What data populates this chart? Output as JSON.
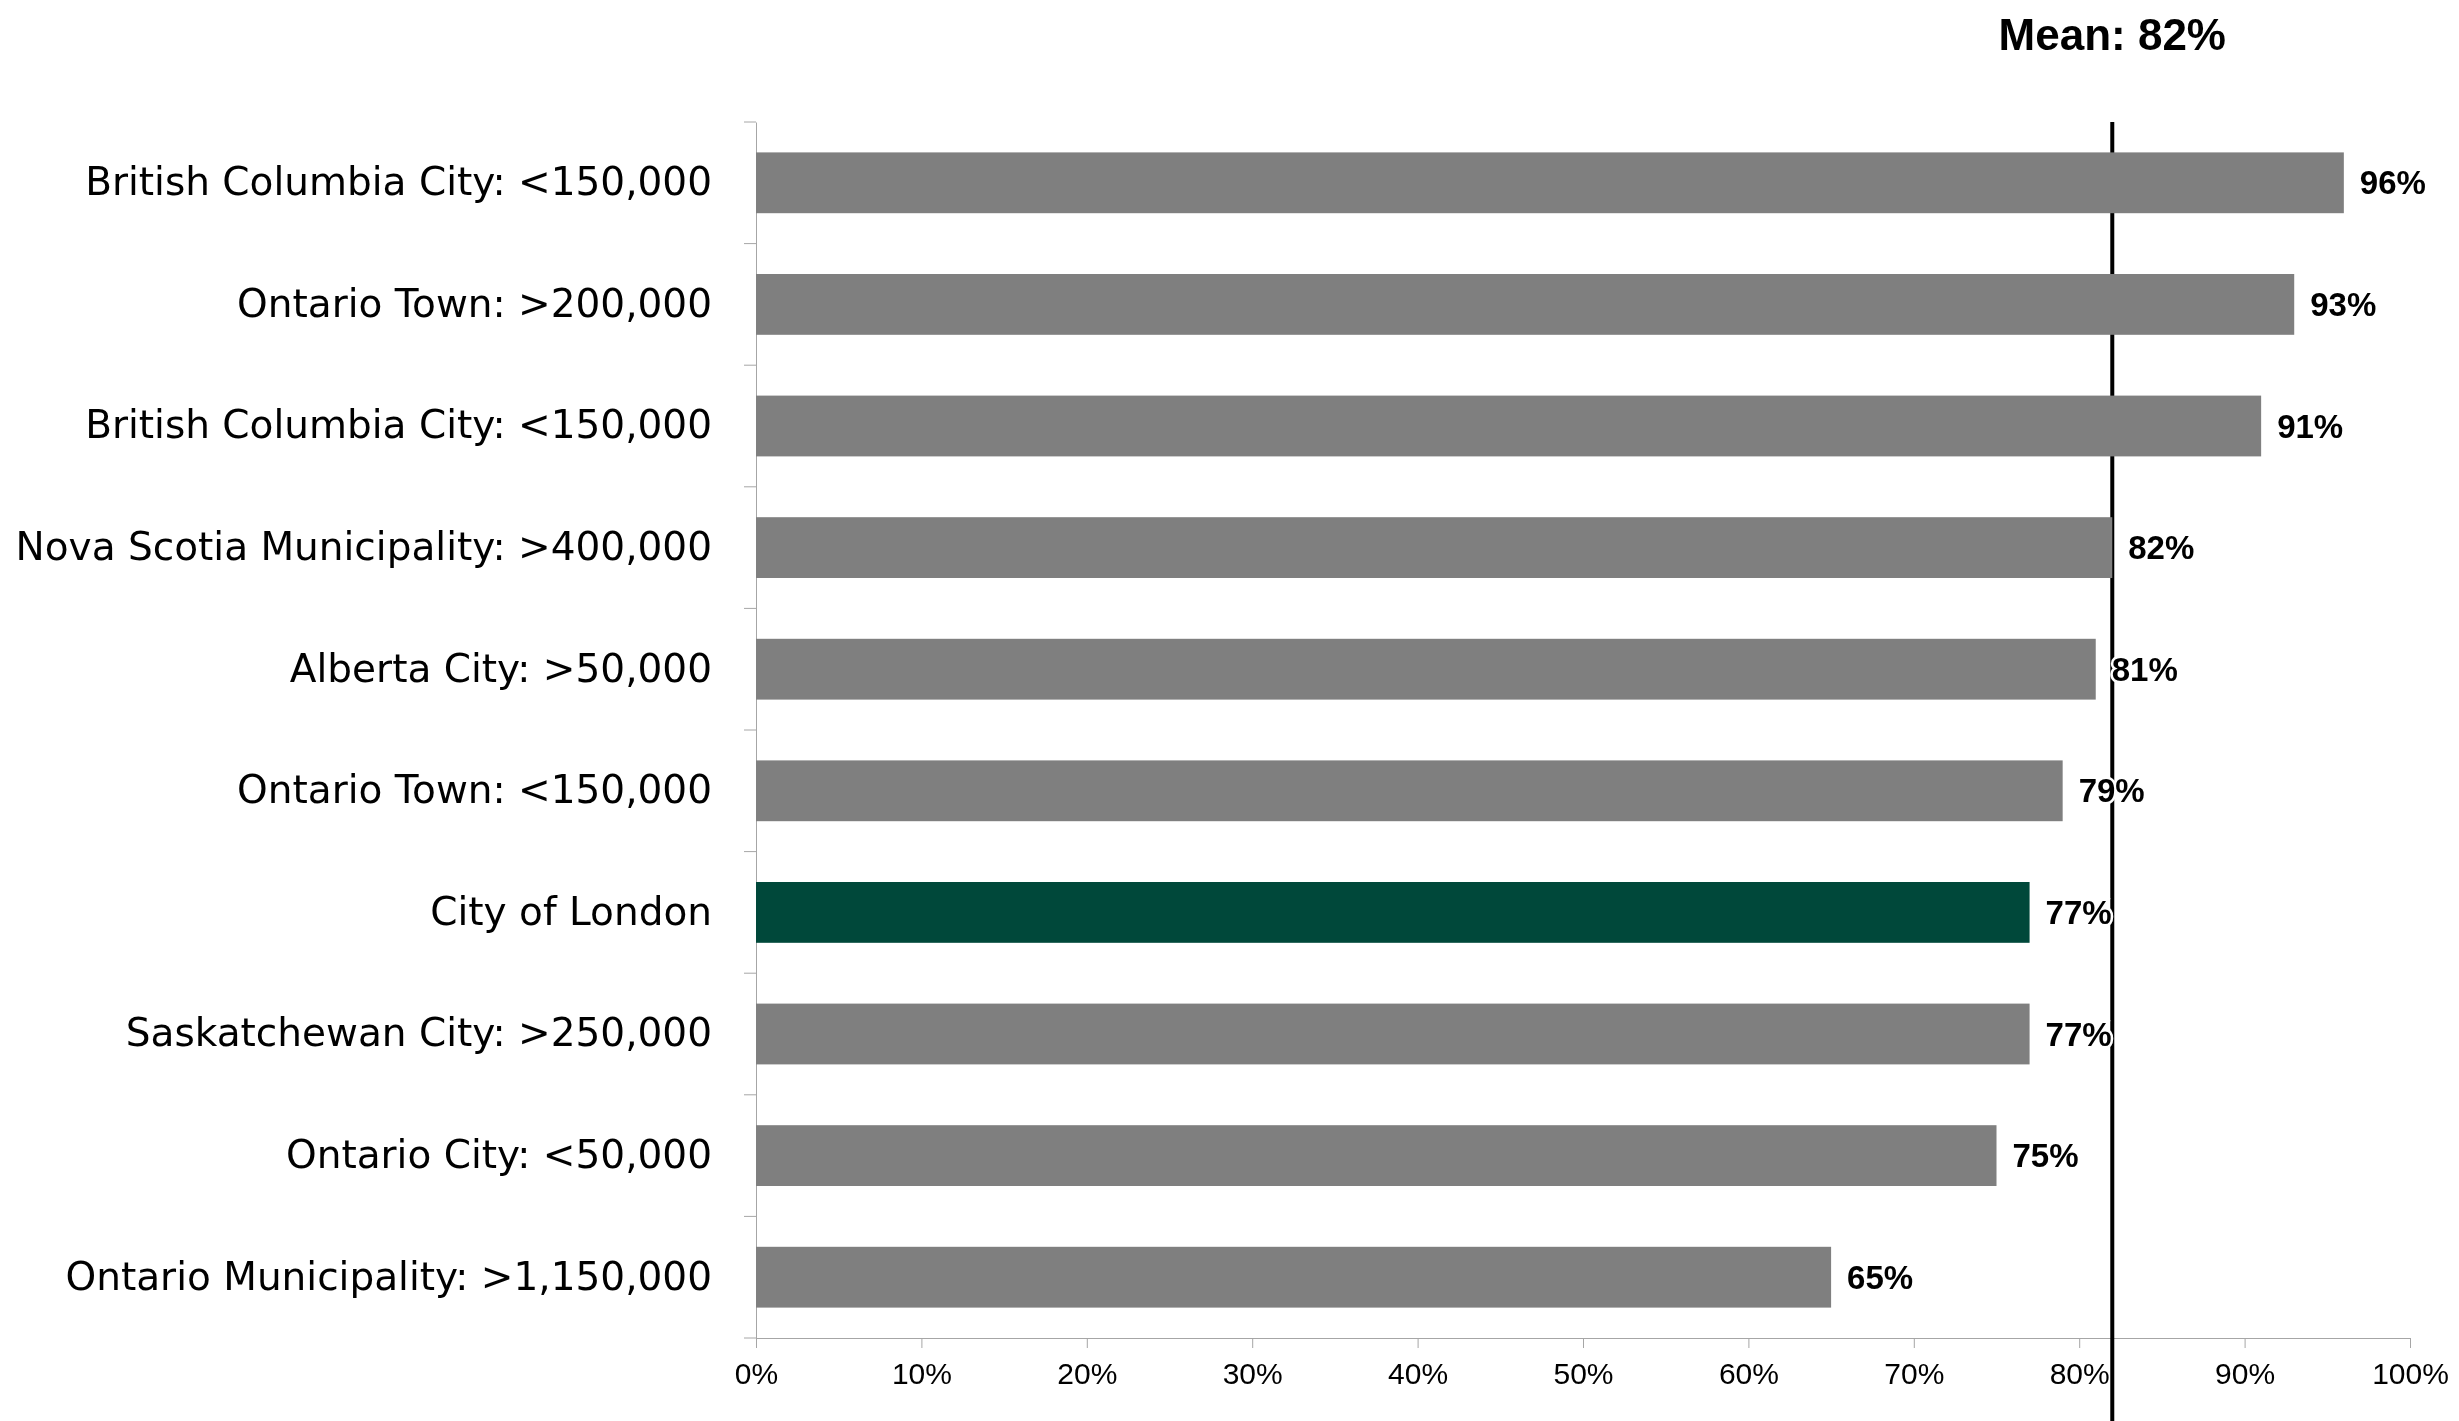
{
  "chart_data": {
    "type": "bar",
    "orientation": "horizontal",
    "categories": [
      "British Columbia City: <150,000",
      "Ontario Town: >200,000",
      "British Columbia City: <150,000",
      "Nova Scotia Municipality: >400,000",
      "Alberta City: >50,000",
      "Ontario Town: <150,000",
      "City of London",
      "Saskatchewan City: >250,000",
      "Ontario City: <50,000",
      "Ontario Municipality: >1,150,000"
    ],
    "values": [
      96,
      93,
      91,
      82,
      81,
      79,
      77,
      77,
      75,
      65
    ],
    "colors": [
      "#7f7f7f",
      "#7f7f7f",
      "#7f7f7f",
      "#7f7f7f",
      "#7f7f7f",
      "#7f7f7f",
      "#00483a",
      "#7f7f7f",
      "#7f7f7f",
      "#7f7f7f"
    ],
    "value_labels": [
      "96%",
      "93%",
      "91%",
      "82%",
      "81%",
      "79%",
      "77%",
      "77%",
      "75%",
      "65%"
    ],
    "xlim": [
      0,
      100
    ],
    "xticks": [
      {
        "value": 0,
        "label": "0%"
      },
      {
        "value": 10,
        "label": "10%"
      },
      {
        "value": 20,
        "label": "20%"
      },
      {
        "value": 30,
        "label": "30%"
      },
      {
        "value": 40,
        "label": "40%"
      },
      {
        "value": 50,
        "label": "50%"
      },
      {
        "value": 60,
        "label": "60%"
      },
      {
        "value": 70,
        "label": "70%"
      },
      {
        "value": 80,
        "label": "80%"
      },
      {
        "value": 90,
        "label": "90%"
      },
      {
        "value": 100,
        "label": "100%"
      }
    ],
    "ref_lines": [
      {
        "axis": "x",
        "value": 82,
        "label": "Mean: 82%",
        "color": "#000000"
      }
    ],
    "grid": false
  }
}
